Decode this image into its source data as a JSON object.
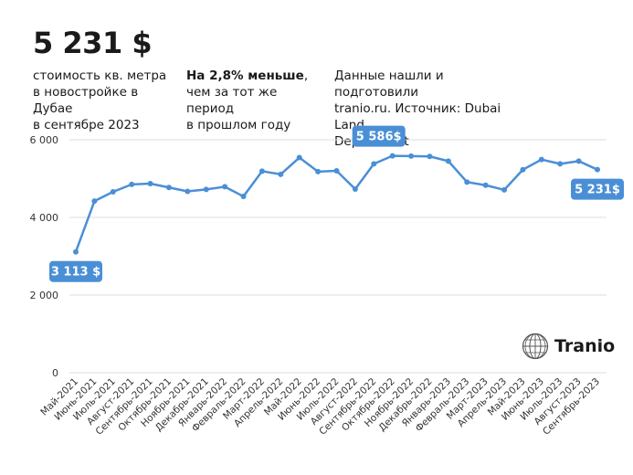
{
  "headline": "5 231 $",
  "notes": {
    "metric_lines": [
      "стоимость кв. метра",
      "в новостройке в Дубае",
      "в сентябре 2023"
    ],
    "change_bold": "На 2,8% меньше",
    "change_rest_1": ",",
    "change_rest_2": "чем за тот же период",
    "change_rest_3": "в прошлом году",
    "source_lines": [
      "Данные нашли и подготовили",
      "tranio.ru. Источник: Dubai Land",
      "Department"
    ]
  },
  "brand": {
    "name": "Tranio",
    "icon": "tranio-globe-logo"
  },
  "colors": {
    "line": "#4a8fd6",
    "callout": "#4a8fd6",
    "grid": "#dcdcdc"
  },
  "chart_data": {
    "type": "line",
    "title": "",
    "xlabel": "",
    "ylabel": "",
    "ylim": [
      0,
      6000
    ],
    "yticks": [
      0,
      2000,
      4000,
      6000
    ],
    "ytick_labels": [
      "0",
      "2 000",
      "4 000",
      "6 000"
    ],
    "grid": true,
    "categories": [
      "Май-2021",
      "Июнь-2021",
      "Июль-2021",
      "Август-2021",
      "Сентябрь-2021",
      "Октябрь-2021",
      "Ноябрь-2021",
      "Декабрь-2021",
      "Январь-2022",
      "Февраль-2022",
      "Март-2022",
      "Апрель-2022",
      "Май-2022",
      "Июнь-2022",
      "Июль-2022",
      "Август-2022",
      "Сентябрь-2022",
      "Октябрь-2022",
      "Ноябрь-2022",
      "Декабрь-2022",
      "Январь-2023",
      "Февраль-2023",
      "Март-2023",
      "Апрель-2023",
      "Май-2023",
      "Июнь-2023",
      "Июль-2023",
      "Август-2023",
      "Сентябрь-2023"
    ],
    "values": [
      3113,
      4420,
      4660,
      4850,
      4870,
      4770,
      4670,
      4720,
      4790,
      4540,
      5190,
      5110,
      5540,
      5180,
      5200,
      4730,
      5380,
      5586,
      5580,
      5570,
      5450,
      4910,
      4830,
      4710,
      5230,
      5490,
      5380,
      5450,
      5231
    ],
    "annotations": [
      {
        "index": 0,
        "label": "3 113 $",
        "placement": "below"
      },
      {
        "index": 17,
        "label": "5 586$",
        "placement": "above-left"
      },
      {
        "index": 28,
        "label": "5 231$",
        "placement": "below"
      }
    ]
  }
}
